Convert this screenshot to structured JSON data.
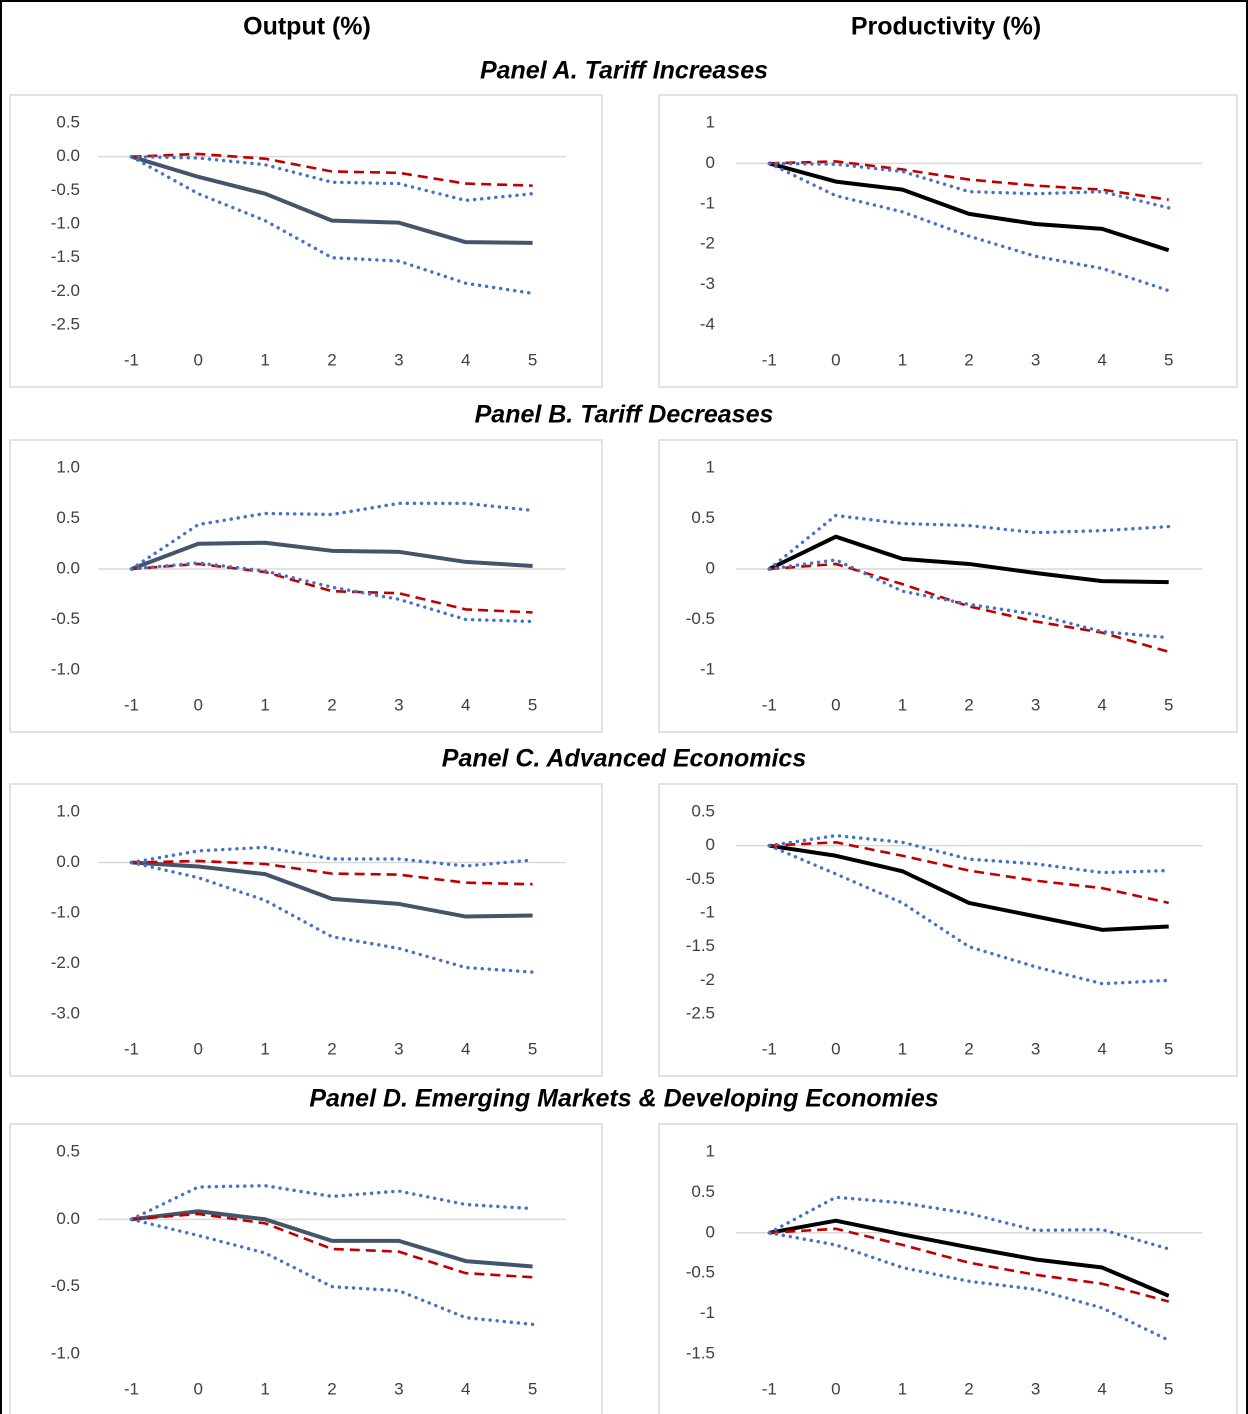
{
  "column_titles": [
    "Output (%)",
    "Productivity (%)"
  ],
  "panel_titles": [
    "Panel A. Tariff Increases",
    "Panel B. Tariff Decreases",
    "Panel C. Advanced Economics",
    "Panel D. Emerging Markets & Developing Economies"
  ],
  "chart_data": [
    {
      "type": "line",
      "categories": [
        "-1",
        "0",
        "1",
        "2",
        "3",
        "4",
        "5"
      ],
      "ylim": [
        -2.5,
        0.5
      ],
      "yticks": [
        0.5,
        {
          "value": 0,
          "label": "0.0"
        },
        -0.5,
        {
          "value": -1,
          "label": "-1.0"
        },
        -1.5,
        {
          "value": -2,
          "label": "-2.0"
        },
        -2.5
      ],
      "series": [
        {
          "color": "#44546a",
          "dash": "solid",
          "values": [
            0,
            -0.3,
            -0.55,
            -0.95,
            -0.98,
            -1.27,
            -1.28
          ]
        },
        {
          "color": "#c00000",
          "dash": "dashed",
          "values": [
            0,
            0.04,
            -0.03,
            -0.22,
            -0.24,
            -0.4,
            -0.43
          ]
        },
        {
          "color": "#4472c4",
          "dash": "dotted",
          "values": [
            0,
            -0.02,
            -0.12,
            -0.38,
            -0.4,
            -0.65,
            -0.55
          ]
        },
        {
          "color": "#4472c4",
          "dash": "dotted",
          "values": [
            0,
            -0.55,
            -0.95,
            -1.5,
            -1.55,
            -1.88,
            -2.03
          ]
        }
      ]
    },
    {
      "type": "line",
      "categories": [
        "-1",
        "0",
        "1",
        "2",
        "3",
        "4",
        "5"
      ],
      "ylim": [
        -4,
        1
      ],
      "yticks": [
        1,
        0,
        -1,
        -2,
        -3,
        -4
      ],
      "series": [
        {
          "color": "#000000",
          "dash": "solid",
          "values": [
            0,
            -0.45,
            -0.65,
            -1.25,
            -1.5,
            -1.62,
            -2.15
          ]
        },
        {
          "color": "#c00000",
          "dash": "dashed",
          "values": [
            0,
            0.05,
            -0.15,
            -0.4,
            -0.55,
            -0.65,
            -0.9
          ]
        },
        {
          "color": "#4472c4",
          "dash": "dotted",
          "values": [
            0,
            -0.02,
            -0.2,
            -0.7,
            -0.75,
            -0.7,
            -1.1
          ]
        },
        {
          "color": "#4472c4",
          "dash": "dotted",
          "values": [
            0,
            -0.8,
            -1.2,
            -1.8,
            -2.3,
            -2.6,
            -3.15
          ]
        }
      ]
    },
    {
      "type": "line",
      "categories": [
        "-1",
        "0",
        "1",
        "2",
        "3",
        "4",
        "5"
      ],
      "ylim": [
        -1,
        1
      ],
      "yticks": [
        {
          "value": 1,
          "label": "1.0"
        },
        0.5,
        {
          "value": 0,
          "label": "0.0"
        },
        -0.5,
        {
          "value": -1,
          "label": "-1.0"
        }
      ],
      "series": [
        {
          "color": "#44546a",
          "dash": "solid",
          "values": [
            0,
            0.25,
            0.26,
            0.18,
            0.17,
            0.07,
            0.03
          ]
        },
        {
          "color": "#c00000",
          "dash": "dashed",
          "values": [
            0,
            0.05,
            -0.03,
            -0.22,
            -0.24,
            -0.4,
            -0.43
          ]
        },
        {
          "color": "#4472c4",
          "dash": "dotted",
          "values": [
            0,
            0.44,
            0.55,
            0.54,
            0.65,
            0.65,
            0.58
          ]
        },
        {
          "color": "#4472c4",
          "dash": "dotted",
          "values": [
            0,
            0.06,
            -0.02,
            -0.18,
            -0.3,
            -0.5,
            -0.52
          ]
        }
      ]
    },
    {
      "type": "line",
      "categories": [
        "-1",
        "0",
        "1",
        "2",
        "3",
        "4",
        "5"
      ],
      "ylim": [
        -1,
        1
      ],
      "yticks": [
        1,
        0.5,
        0,
        -0.5,
        -1
      ],
      "series": [
        {
          "color": "#000000",
          "dash": "solid",
          "values": [
            0,
            0.32,
            0.1,
            0.05,
            -0.04,
            -0.12,
            -0.13
          ]
        },
        {
          "color": "#c00000",
          "dash": "dashed",
          "values": [
            0,
            0.05,
            -0.15,
            -0.37,
            -0.52,
            -0.63,
            -0.82
          ]
        },
        {
          "color": "#4472c4",
          "dash": "dotted",
          "values": [
            0,
            0.53,
            0.45,
            0.43,
            0.36,
            0.38,
            0.42
          ]
        },
        {
          "color": "#4472c4",
          "dash": "dotted",
          "values": [
            0,
            0.09,
            -0.22,
            -0.35,
            -0.45,
            -0.62,
            -0.68
          ]
        }
      ]
    },
    {
      "type": "line",
      "categories": [
        "-1",
        "0",
        "1",
        "2",
        "3",
        "4",
        "5"
      ],
      "ylim": [
        -3,
        1
      ],
      "yticks": [
        {
          "value": 1,
          "label": "1.0"
        },
        {
          "value": 0,
          "label": "0.0"
        },
        {
          "value": -1,
          "label": "-1.0"
        },
        {
          "value": -2,
          "label": "-2.0"
        },
        {
          "value": -3,
          "label": "-3.0"
        }
      ],
      "series": [
        {
          "color": "#44546a",
          "dash": "solid",
          "values": [
            0,
            -0.08,
            -0.23,
            -0.72,
            -0.82,
            -1.07,
            -1.05
          ]
        },
        {
          "color": "#c00000",
          "dash": "dashed",
          "values": [
            0,
            0.03,
            -0.03,
            -0.22,
            -0.24,
            -0.4,
            -0.43
          ]
        },
        {
          "color": "#4472c4",
          "dash": "dotted",
          "values": [
            0,
            0.23,
            0.3,
            0.07,
            0.07,
            -0.07,
            0.05
          ]
        },
        {
          "color": "#4472c4",
          "dash": "dotted",
          "values": [
            0,
            -0.3,
            -0.75,
            -1.47,
            -1.7,
            -2.08,
            -2.17
          ]
        }
      ]
    },
    {
      "type": "line",
      "categories": [
        "-1",
        "0",
        "1",
        "2",
        "3",
        "4",
        "5"
      ],
      "ylim": [
        -2.5,
        0.5
      ],
      "yticks": [
        0.5,
        0,
        -0.5,
        -1,
        -1.5,
        -2,
        -2.5
      ],
      "series": [
        {
          "color": "#000000",
          "dash": "solid",
          "values": [
            0,
            -0.15,
            -0.38,
            -0.85,
            -1.05,
            -1.25,
            -1.2
          ]
        },
        {
          "color": "#c00000",
          "dash": "dashed",
          "values": [
            0,
            0.05,
            -0.15,
            -0.37,
            -0.52,
            -0.63,
            -0.85
          ]
        },
        {
          "color": "#4472c4",
          "dash": "dotted",
          "values": [
            0,
            0.15,
            0.05,
            -0.2,
            -0.27,
            -0.4,
            -0.37
          ]
        },
        {
          "color": "#4472c4",
          "dash": "dotted",
          "values": [
            0,
            -0.42,
            -0.85,
            -1.5,
            -1.8,
            -2.05,
            -2.0
          ]
        }
      ]
    },
    {
      "type": "line",
      "categories": [
        "-1",
        "0",
        "1",
        "2",
        "3",
        "4",
        "5"
      ],
      "ylim": [
        -1,
        0.5
      ],
      "yticks": [
        0.5,
        {
          "value": 0,
          "label": "0.0"
        },
        -0.5,
        {
          "value": -1,
          "label": "-1.0"
        }
      ],
      "series": [
        {
          "color": "#44546a",
          "dash": "solid",
          "values": [
            0,
            0.06,
            0,
            -0.16,
            -0.16,
            -0.31,
            -0.35
          ]
        },
        {
          "color": "#c00000",
          "dash": "dashed",
          "values": [
            0,
            0.04,
            -0.03,
            -0.22,
            -0.24,
            -0.4,
            -0.43
          ]
        },
        {
          "color": "#4472c4",
          "dash": "dotted",
          "values": [
            0,
            0.24,
            0.25,
            0.17,
            0.21,
            0.11,
            0.08
          ]
        },
        {
          "color": "#4472c4",
          "dash": "dotted",
          "values": [
            0,
            -0.12,
            -0.25,
            -0.5,
            -0.53,
            -0.73,
            -0.78
          ]
        }
      ]
    },
    {
      "type": "line",
      "categories": [
        "-1",
        "0",
        "1",
        "2",
        "3",
        "4",
        "5"
      ],
      "ylim": [
        -1.5,
        1
      ],
      "yticks": [
        1,
        0.5,
        0,
        -0.5,
        -1,
        -1.5
      ],
      "series": [
        {
          "color": "#000000",
          "dash": "solid",
          "values": [
            0,
            0.15,
            -0.02,
            -0.18,
            -0.33,
            -0.43,
            -0.78
          ]
        },
        {
          "color": "#c00000",
          "dash": "dashed",
          "values": [
            0,
            0.05,
            -0.15,
            -0.37,
            -0.52,
            -0.63,
            -0.85
          ]
        },
        {
          "color": "#4472c4",
          "dash": "dotted",
          "values": [
            0,
            0.44,
            0.37,
            0.24,
            0.03,
            0.04,
            -0.2
          ]
        },
        {
          "color": "#4472c4",
          "dash": "dotted",
          "values": [
            0,
            -0.15,
            -0.43,
            -0.6,
            -0.7,
            -0.93,
            -1.33
          ]
        }
      ]
    }
  ]
}
